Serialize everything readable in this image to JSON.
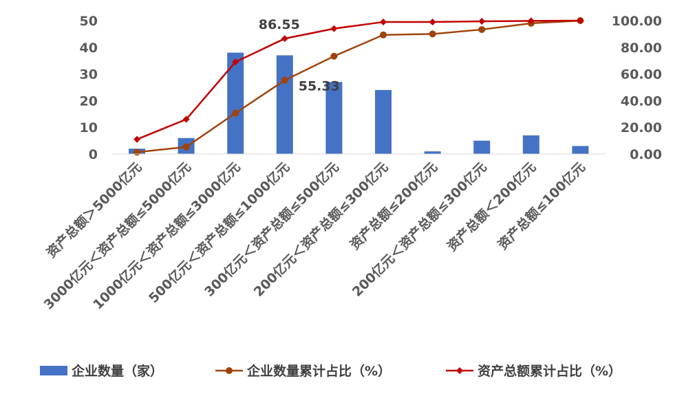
{
  "chart_data": {
    "type": "bar",
    "categories": [
      "资产总额＞5000亿元",
      "3000亿元＜资产总额≤5000亿元",
      "1000亿元＜资产总额≤3000亿元",
      "500亿元＜资产总额≤1000亿元",
      "300亿元＜资产总额≤500亿元",
      "200亿元＜资产总额≤300亿元",
      "资产总额≤200亿元",
      "200亿元＜资产总额≤300亿元",
      "资产总额＜200亿元",
      "资产总额≤100亿元"
    ],
    "series": [
      {
        "name": "企业数量（家）",
        "type": "bar",
        "axis": "left",
        "color": "#4472C4",
        "values": [
          2,
          6,
          38,
          37,
          27,
          24,
          1,
          5,
          7,
          3
        ]
      },
      {
        "name": "企业数量累计占比（%）",
        "type": "line",
        "axis": "right",
        "color": "#A0430A",
        "marker": "circle",
        "values": [
          1.33,
          5.33,
          30.67,
          55.33,
          73.33,
          89.33,
          90.0,
          93.33,
          98.0,
          100.0
        ]
      },
      {
        "name": "资产总额累计占比（%）",
        "type": "line",
        "axis": "right",
        "color": "#C00000",
        "marker": "diamond",
        "values": [
          11.0,
          26.0,
          69.0,
          86.55,
          94.0,
          99.0,
          99.0,
          99.5,
          99.8,
          100.0
        ]
      }
    ],
    "y_left": {
      "ylim": [
        0,
        50
      ],
      "ticks": [
        "0",
        "10",
        "20",
        "30",
        "40",
        "50"
      ]
    },
    "y_right": {
      "ylim": [
        0,
        100
      ],
      "ticks": [
        "0.00",
        "20.00",
        "40.00",
        "60.00",
        "80.00",
        "100.00"
      ]
    },
    "annotations": [
      {
        "series": 2,
        "index": 3,
        "text": "86.55"
      },
      {
        "series": 1,
        "index": 3,
        "text": "55.33"
      }
    ],
    "title": "",
    "xlabel": "",
    "grid": false,
    "legend_position": "bottom"
  }
}
